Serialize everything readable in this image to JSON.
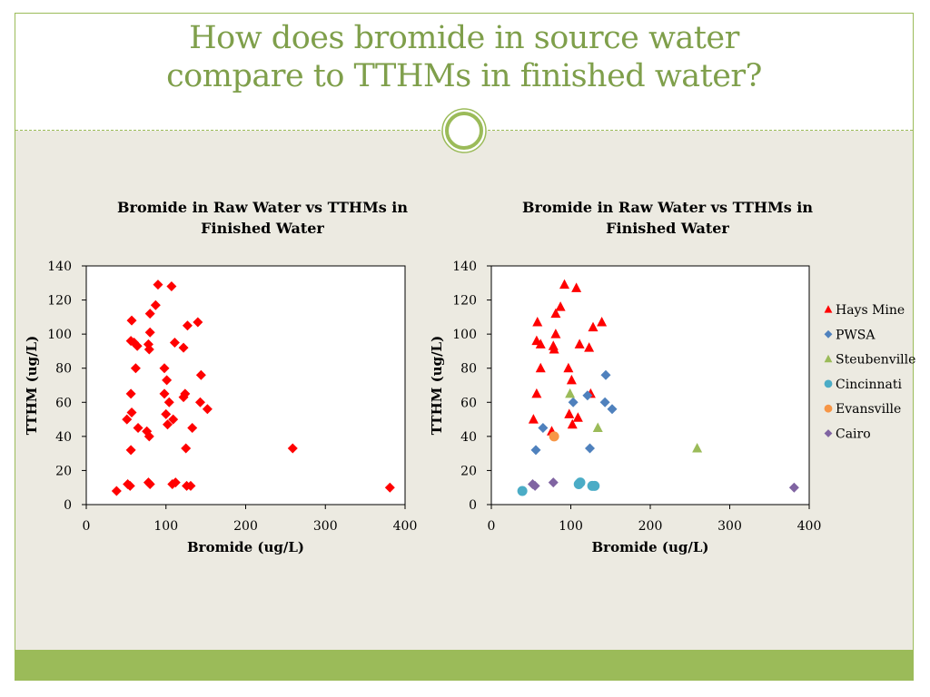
{
  "slide": {
    "title_line1": "How does bromide in source water",
    "title_line2": "compare to TTHMs in finished water?",
    "accent_color": "#9bbb59",
    "title_color": "#7f9f4b",
    "content_bg": "#eceae1"
  },
  "chart_data": [
    {
      "type": "scatter",
      "title": "Bromide in Raw Water vs TTHMs in Finished Water",
      "xlabel": "Bromide (ug/L)",
      "ylabel": "TTHM (ug/L)",
      "xlim": [
        0,
        400
      ],
      "ylim": [
        0,
        140
      ],
      "xticks": [
        0,
        100,
        200,
        300,
        400
      ],
      "yticks": [
        0,
        20,
        40,
        60,
        80,
        100,
        120,
        140
      ],
      "grid": false,
      "legend": "none",
      "series": [
        {
          "color": "#ff0000",
          "marker": "diamond",
          "points": [
            [
              90,
              129
            ],
            [
              107,
              128
            ],
            [
              87,
              117
            ],
            [
              80,
              112
            ],
            [
              57,
              108
            ],
            [
              140,
              107
            ],
            [
              127,
              105
            ],
            [
              80,
              101
            ],
            [
              56,
              96
            ],
            [
              111,
              95
            ],
            [
              60,
              95
            ],
            [
              78,
              94
            ],
            [
              64,
              93
            ],
            [
              122,
              92
            ],
            [
              79,
              91
            ],
            [
              98,
              80
            ],
            [
              62,
              80
            ],
            [
              144,
              76
            ],
            [
              101,
              73
            ],
            [
              124,
              65
            ],
            [
              56,
              65
            ],
            [
              98,
              65
            ],
            [
              122,
              63
            ],
            [
              104,
              60
            ],
            [
              143,
              60
            ],
            [
              152,
              56
            ],
            [
              57,
              54
            ],
            [
              100,
              53
            ],
            [
              109,
              50
            ],
            [
              51,
              50
            ],
            [
              102,
              47
            ],
            [
              65,
              45
            ],
            [
              133,
              45
            ],
            [
              76,
              43
            ],
            [
              79,
              40
            ],
            [
              125,
              33
            ],
            [
              56,
              32
            ],
            [
              259,
              33
            ],
            [
              78,
              13
            ],
            [
              80,
              12
            ],
            [
              112,
              13
            ],
            [
              108,
              12
            ],
            [
              52,
              12
            ],
            [
              131,
              11
            ],
            [
              126,
              11
            ],
            [
              55,
              11
            ],
            [
              38,
              8
            ],
            [
              381,
              10
            ]
          ]
        }
      ]
    },
    {
      "type": "scatter",
      "title": "Bromide in Raw Water vs TTHMs in Finished Water",
      "xlabel": "Bromide (ug/L)",
      "ylabel": "TTHM (ug/L)",
      "xlim": [
        0,
        400
      ],
      "ylim": [
        0,
        140
      ],
      "xticks": [
        0,
        100,
        200,
        300,
        400
      ],
      "yticks": [
        0,
        20,
        40,
        60,
        80,
        100,
        120,
        140
      ],
      "grid": false,
      "legend": "right",
      "series": [
        {
          "name": "Hays Mine",
          "color": "#ff0000",
          "marker": "triangle",
          "points": [
            [
              92,
              129
            ],
            [
              107,
              127
            ],
            [
              87,
              116
            ],
            [
              81,
              112
            ],
            [
              58,
              107
            ],
            [
              139,
              107
            ],
            [
              128,
              104
            ],
            [
              81,
              100
            ],
            [
              57,
              96
            ],
            [
              111,
              94
            ],
            [
              62,
              94
            ],
            [
              78,
              93
            ],
            [
              79,
              91
            ],
            [
              123,
              92
            ],
            [
              97,
              80
            ],
            [
              62,
              80
            ],
            [
              101,
              73
            ],
            [
              125,
              65
            ],
            [
              57,
              65
            ],
            [
              98,
              53
            ],
            [
              109,
              51
            ],
            [
              53,
              50
            ],
            [
              102,
              47
            ],
            [
              76,
              43
            ]
          ]
        },
        {
          "name": "PWSA",
          "color": "#4f81bd",
          "marker": "diamond",
          "points": [
            [
              144,
              76
            ],
            [
              121,
              64
            ],
            [
              103,
              60
            ],
            [
              143,
              60
            ],
            [
              152,
              56
            ],
            [
              65,
              45
            ],
            [
              124,
              33
            ],
            [
              56,
              32
            ]
          ]
        },
        {
          "name": "Steubenville",
          "color": "#9bbb59",
          "marker": "triangle",
          "points": [
            [
              99,
              65
            ],
            [
              134,
              45
            ],
            [
              259,
              33
            ]
          ]
        },
        {
          "name": "Cincinnati",
          "color": "#4bacc6",
          "marker": "circle",
          "points": [
            [
              112,
              13
            ],
            [
              110,
              12
            ],
            [
              130,
              11
            ],
            [
              127,
              11
            ],
            [
              39,
              8
            ]
          ]
        },
        {
          "name": "Evansville",
          "color": "#f79646",
          "marker": "circle",
          "points": [
            [
              79,
              40
            ]
          ]
        },
        {
          "name": "Cairo",
          "color": "#8064a2",
          "marker": "diamond",
          "points": [
            [
              78,
              13
            ],
            [
              52,
              12
            ],
            [
              55,
              11
            ],
            [
              381,
              10
            ]
          ]
        }
      ]
    }
  ]
}
